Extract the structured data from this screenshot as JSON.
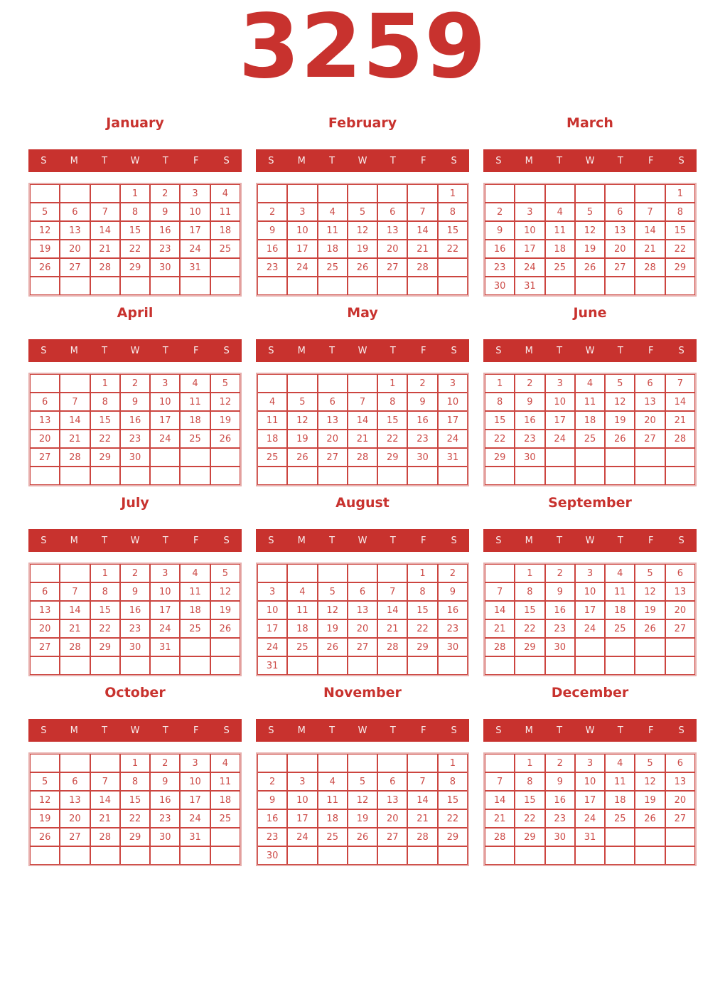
{
  "year": "3259",
  "weekdays": [
    "S",
    "M",
    "T",
    "W",
    "T",
    "F",
    "S"
  ],
  "colors": {
    "accent": "#c8322e",
    "day": "#cc4b47",
    "grid": "#cc4540",
    "frame": "#e7aeac",
    "weekday-text": "#f8ecec",
    "bg": "#ffffff"
  },
  "months": [
    {
      "name": "January",
      "rows": [
        [
          "",
          "",
          "",
          "1",
          "2",
          "3",
          "4"
        ],
        [
          "5",
          "6",
          "7",
          "8",
          "9",
          "10",
          "11"
        ],
        [
          "12",
          "13",
          "14",
          "15",
          "16",
          "17",
          "18"
        ],
        [
          "19",
          "20",
          "21",
          "22",
          "23",
          "24",
          "25"
        ],
        [
          "26",
          "27",
          "28",
          "29",
          "30",
          "31",
          ""
        ],
        [
          "",
          "",
          "",
          "",
          "",
          "",
          ""
        ]
      ]
    },
    {
      "name": "February",
      "rows": [
        [
          "",
          "",
          "",
          "",
          "",
          "",
          "1"
        ],
        [
          "2",
          "3",
          "4",
          "5",
          "6",
          "7",
          "8"
        ],
        [
          "9",
          "10",
          "11",
          "12",
          "13",
          "14",
          "15"
        ],
        [
          "16",
          "17",
          "18",
          "19",
          "20",
          "21",
          "22"
        ],
        [
          "23",
          "24",
          "25",
          "26",
          "27",
          "28",
          ""
        ],
        [
          "",
          "",
          "",
          "",
          "",
          "",
          ""
        ]
      ]
    },
    {
      "name": "March",
      "rows": [
        [
          "",
          "",
          "",
          "",
          "",
          "",
          "1"
        ],
        [
          "2",
          "3",
          "4",
          "5",
          "6",
          "7",
          "8"
        ],
        [
          "9",
          "10",
          "11",
          "12",
          "13",
          "14",
          "15"
        ],
        [
          "16",
          "17",
          "18",
          "19",
          "20",
          "21",
          "22"
        ],
        [
          "23",
          "24",
          "25",
          "26",
          "27",
          "28",
          "29"
        ],
        [
          "30",
          "31",
          "",
          "",
          "",
          "",
          ""
        ]
      ]
    },
    {
      "name": "April",
      "rows": [
        [
          "",
          "",
          "1",
          "2",
          "3",
          "4",
          "5"
        ],
        [
          "6",
          "7",
          "8",
          "9",
          "10",
          "11",
          "12"
        ],
        [
          "13",
          "14",
          "15",
          "16",
          "17",
          "18",
          "19"
        ],
        [
          "20",
          "21",
          "22",
          "23",
          "24",
          "25",
          "26"
        ],
        [
          "27",
          "28",
          "29",
          "30",
          "",
          "",
          ""
        ],
        [
          "",
          "",
          "",
          "",
          "",
          "",
          ""
        ]
      ]
    },
    {
      "name": "May",
      "rows": [
        [
          "",
          "",
          "",
          "",
          "1",
          "2",
          "3"
        ],
        [
          "4",
          "5",
          "6",
          "7",
          "8",
          "9",
          "10"
        ],
        [
          "11",
          "12",
          "13",
          "14",
          "15",
          "16",
          "17"
        ],
        [
          "18",
          "19",
          "20",
          "21",
          "22",
          "23",
          "24"
        ],
        [
          "25",
          "26",
          "27",
          "28",
          "29",
          "30",
          "31"
        ],
        [
          "",
          "",
          "",
          "",
          "",
          "",
          ""
        ]
      ]
    },
    {
      "name": "June",
      "rows": [
        [
          "1",
          "2",
          "3",
          "4",
          "5",
          "6",
          "7"
        ],
        [
          "8",
          "9",
          "10",
          "11",
          "12",
          "13",
          "14"
        ],
        [
          "15",
          "16",
          "17",
          "18",
          "19",
          "20",
          "21"
        ],
        [
          "22",
          "23",
          "24",
          "25",
          "26",
          "27",
          "28"
        ],
        [
          "29",
          "30",
          "",
          "",
          "",
          "",
          ""
        ],
        [
          "",
          "",
          "",
          "",
          "",
          "",
          ""
        ]
      ]
    },
    {
      "name": "July",
      "rows": [
        [
          "",
          "",
          "1",
          "2",
          "3",
          "4",
          "5"
        ],
        [
          "6",
          "7",
          "8",
          "9",
          "10",
          "11",
          "12"
        ],
        [
          "13",
          "14",
          "15",
          "16",
          "17",
          "18",
          "19"
        ],
        [
          "20",
          "21",
          "22",
          "23",
          "24",
          "25",
          "26"
        ],
        [
          "27",
          "28",
          "29",
          "30",
          "31",
          "",
          ""
        ],
        [
          "",
          "",
          "",
          "",
          "",
          "",
          ""
        ]
      ]
    },
    {
      "name": "August",
      "rows": [
        [
          "",
          "",
          "",
          "",
          "",
          "1",
          "2"
        ],
        [
          "3",
          "4",
          "5",
          "6",
          "7",
          "8",
          "9"
        ],
        [
          "10",
          "11",
          "12",
          "13",
          "14",
          "15",
          "16"
        ],
        [
          "17",
          "18",
          "19",
          "20",
          "21",
          "22",
          "23"
        ],
        [
          "24",
          "25",
          "26",
          "27",
          "28",
          "29",
          "30"
        ],
        [
          "31",
          "",
          "",
          "",
          "",
          "",
          ""
        ]
      ]
    },
    {
      "name": "September",
      "rows": [
        [
          "",
          "1",
          "2",
          "3",
          "4",
          "5",
          "6"
        ],
        [
          "7",
          "8",
          "9",
          "10",
          "11",
          "12",
          "13"
        ],
        [
          "14",
          "15",
          "16",
          "17",
          "18",
          "19",
          "20"
        ],
        [
          "21",
          "22",
          "23",
          "24",
          "25",
          "26",
          "27"
        ],
        [
          "28",
          "29",
          "30",
          "",
          "",
          "",
          ""
        ],
        [
          "",
          "",
          "",
          "",
          "",
          "",
          ""
        ]
      ]
    },
    {
      "name": "October",
      "rows": [
        [
          "",
          "",
          "",
          "1",
          "2",
          "3",
          "4"
        ],
        [
          "5",
          "6",
          "7",
          "8",
          "9",
          "10",
          "11"
        ],
        [
          "12",
          "13",
          "14",
          "15",
          "16",
          "17",
          "18"
        ],
        [
          "19",
          "20",
          "21",
          "22",
          "23",
          "24",
          "25"
        ],
        [
          "26",
          "27",
          "28",
          "29",
          "30",
          "31",
          ""
        ],
        [
          "",
          "",
          "",
          "",
          "",
          "",
          ""
        ]
      ]
    },
    {
      "name": "November",
      "rows": [
        [
          "",
          "",
          "",
          "",
          "",
          "",
          "1"
        ],
        [
          "2",
          "3",
          "4",
          "5",
          "6",
          "7",
          "8"
        ],
        [
          "9",
          "10",
          "11",
          "12",
          "13",
          "14",
          "15"
        ],
        [
          "16",
          "17",
          "18",
          "19",
          "20",
          "21",
          "22"
        ],
        [
          "23",
          "24",
          "25",
          "26",
          "27",
          "28",
          "29"
        ],
        [
          "30",
          "",
          "",
          "",
          "",
          "",
          ""
        ]
      ]
    },
    {
      "name": "December",
      "rows": [
        [
          "",
          "1",
          "2",
          "3",
          "4",
          "5",
          "6"
        ],
        [
          "7",
          "8",
          "9",
          "10",
          "11",
          "12",
          "13"
        ],
        [
          "14",
          "15",
          "16",
          "17",
          "18",
          "19",
          "20"
        ],
        [
          "21",
          "22",
          "23",
          "24",
          "25",
          "26",
          "27"
        ],
        [
          "28",
          "29",
          "30",
          "31",
          "",
          "",
          ""
        ],
        [
          "",
          "",
          "",
          "",
          "",
          "",
          ""
        ]
      ]
    }
  ]
}
